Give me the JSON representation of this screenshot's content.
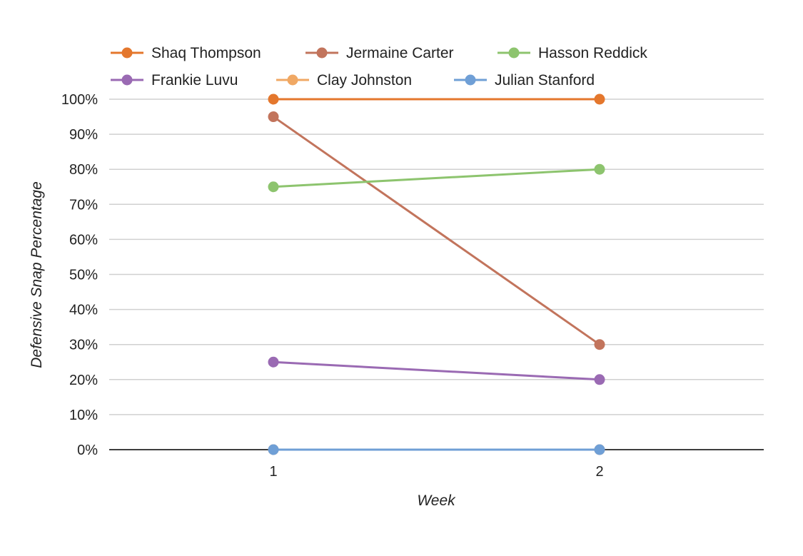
{
  "chart_data": {
    "type": "line",
    "title": "",
    "xlabel": "Week",
    "ylabel": "Defensive Snap Percentage",
    "categories": [
      "1",
      "2"
    ],
    "ylim": [
      0,
      100
    ],
    "y_ticks": [
      0,
      10,
      20,
      30,
      40,
      50,
      60,
      70,
      80,
      90,
      100
    ],
    "y_tick_labels": [
      "0%",
      "10%",
      "20%",
      "30%",
      "40%",
      "50%",
      "60%",
      "70%",
      "80%",
      "90%",
      "100%"
    ],
    "grid": true,
    "legend_position": "top",
    "series": [
      {
        "name": "Shaq Thompson",
        "color": "#e4772d",
        "values": [
          100,
          100
        ]
      },
      {
        "name": "Jermaine Carter",
        "color": "#c2745c",
        "values": [
          95,
          30
        ]
      },
      {
        "name": "Hasson Reddick",
        "color": "#8dc46e",
        "values": [
          75,
          80
        ]
      },
      {
        "name": "Frankie Luvu",
        "color": "#9a6ab3",
        "values": [
          25,
          20
        ]
      },
      {
        "name": "Clay Johnston",
        "color": "#f0a864",
        "values": [
          0,
          0
        ]
      },
      {
        "name": "Julian Stanford",
        "color": "#6f9fd6",
        "values": [
          0,
          0
        ]
      }
    ]
  }
}
